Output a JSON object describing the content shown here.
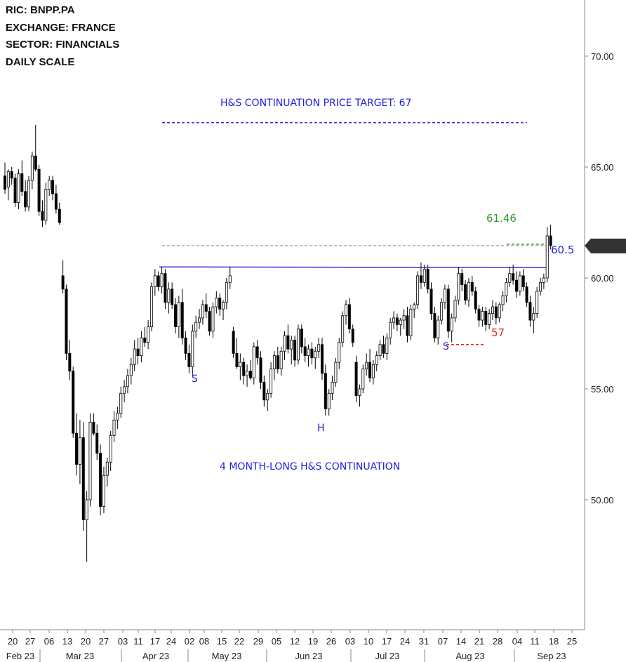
{
  "info": {
    "ric": "RIC:  BNPP.PA",
    "exchange": "EXCHANGE:  FRANCE",
    "sector": "SECTOR:  FINANCIALS",
    "scale": "DAILY SCALE"
  },
  "annotations": {
    "target": "H&S CONTINUATION PRICE TARGET: 67",
    "pattern": "4 MONTH-LONG H&S CONTINUATION",
    "neckline_label": "60.5",
    "last_label": "61.46",
    "stop_label": "57",
    "left_shoulder": "S",
    "head": "H",
    "right_shoulder": "S",
    "last_price_tag": "61.46"
  },
  "colors": {
    "up": "#ffffff",
    "down": "#000000",
    "wick": "#000000",
    "neckline": "#3535e0",
    "target": "#3535e0",
    "last": "#2e9a2e",
    "stop": "#e02020",
    "tag": "#333333"
  },
  "chart_data": {
    "type": "candlestick",
    "ylim": [
      45.0,
      72.0
    ],
    "yticks": [
      70.0,
      65.0,
      60.0,
      55.0,
      50.0
    ],
    "ytick_labels": [
      "70.00",
      "65.00",
      "60.00",
      "55.00",
      "50.00"
    ],
    "x_ticks": [
      "20",
      "27",
      "06",
      "13",
      "20",
      "27",
      "03",
      "11",
      "17",
      "24",
      "02",
      "08",
      "15",
      "22",
      "29",
      "05",
      "12",
      "19",
      "26",
      "03",
      "10",
      "17",
      "24",
      "31",
      "07",
      "14",
      "21",
      "28",
      "04",
      "11",
      "18",
      "25"
    ],
    "months": [
      "Feb 23",
      "Mar 23",
      "Apr 23",
      "May 23",
      "Jun 23",
      "Jul 23",
      "Aug 23",
      "Sep 23"
    ],
    "levels": {
      "target": 67.0,
      "neckline": 60.5,
      "last": 61.46,
      "stop": 57.0
    },
    "candles": [
      [
        64.6,
        65.2,
        63.8,
        64.0
      ],
      [
        64.1,
        64.9,
        63.5,
        64.8
      ],
      [
        64.8,
        65.0,
        64.2,
        64.5
      ],
      [
        64.5,
        64.7,
        63.2,
        63.4
      ],
      [
        63.4,
        64.9,
        63.1,
        64.7
      ],
      [
        64.7,
        65.3,
        63.7,
        63.9
      ],
      [
        63.9,
        64.4,
        63.0,
        63.2
      ],
      [
        63.2,
        64.6,
        63.0,
        64.4
      ],
      [
        64.4,
        65.7,
        64.0,
        65.5
      ],
      [
        65.5,
        66.9,
        64.8,
        64.9
      ],
      [
        64.9,
        65.1,
        62.8,
        63.0
      ],
      [
        63.0,
        63.5,
        62.3,
        62.6
      ],
      [
        62.6,
        64.3,
        62.4,
        64.0
      ],
      [
        64.0,
        64.6,
        63.7,
        64.4
      ],
      [
        64.4,
        64.6,
        63.5,
        63.8
      ],
      [
        63.8,
        64.2,
        62.9,
        63.1
      ],
      [
        63.1,
        63.4,
        62.4,
        62.5
      ],
      [
        60.1,
        60.8,
        59.3,
        59.5
      ],
      [
        59.5,
        59.7,
        56.3,
        56.6
      ],
      [
        56.6,
        57.2,
        55.4,
        55.8
      ],
      [
        55.8,
        56.0,
        52.8,
        53.0
      ],
      [
        53.0,
        53.9,
        51.1,
        51.6
      ],
      [
        51.6,
        53.6,
        50.7,
        52.8
      ],
      [
        52.8,
        53.5,
        48.6,
        49.1
      ],
      [
        49.1,
        50.4,
        47.2,
        50.0
      ],
      [
        50.0,
        53.9,
        49.7,
        53.5
      ],
      [
        53.5,
        53.9,
        52.9,
        53.0
      ],
      [
        53.0,
        53.4,
        51.8,
        52.1
      ],
      [
        52.1,
        52.5,
        49.3,
        49.7
      ],
      [
        49.7,
        51.5,
        49.4,
        51.1
      ],
      [
        51.1,
        51.9,
        50.6,
        51.7
      ],
      [
        51.7,
        53.1,
        51.3,
        52.9
      ],
      [
        52.9,
        54.0,
        52.6,
        53.6
      ],
      [
        53.6,
        54.2,
        53.2,
        53.9
      ],
      [
        53.9,
        55.1,
        53.7,
        54.8
      ],
      [
        54.8,
        55.4,
        54.4,
        55.1
      ],
      [
        55.1,
        55.9,
        54.8,
        55.6
      ],
      [
        55.6,
        56.4,
        55.2,
        56.1
      ],
      [
        56.1,
        57.2,
        55.8,
        56.8
      ],
      [
        56.8,
        57.3,
        56.1,
        56.5
      ],
      [
        56.5,
        57.6,
        56.2,
        57.3
      ],
      [
        57.3,
        57.8,
        56.9,
        57.1
      ],
      [
        57.1,
        58.1,
        56.8,
        57.8
      ],
      [
        57.8,
        59.8,
        57.6,
        59.6
      ],
      [
        59.6,
        60.4,
        59.2,
        60.1
      ],
      [
        60.1,
        60.3,
        59.4,
        59.6
      ],
      [
        59.6,
        60.5,
        59.3,
        60.2
      ],
      [
        60.2,
        60.4,
        58.6,
        58.9
      ],
      [
        58.9,
        59.8,
        58.4,
        59.5
      ],
      [
        59.5,
        59.8,
        58.6,
        58.8
      ],
      [
        58.8,
        59.1,
        57.5,
        57.8
      ],
      [
        57.8,
        59.2,
        57.3,
        58.9
      ],
      [
        58.9,
        59.5,
        57.0,
        57.3
      ],
      [
        57.3,
        57.6,
        56.3,
        56.6
      ],
      [
        56.6,
        57.0,
        55.7,
        56.0
      ],
      [
        56.0,
        57.9,
        55.6,
        57.6
      ],
      [
        57.6,
        58.3,
        57.3,
        58.0
      ],
      [
        58.0,
        58.6,
        57.7,
        58.2
      ],
      [
        58.2,
        59.0,
        57.9,
        58.8
      ],
      [
        58.8,
        59.3,
        58.2,
        58.5
      ],
      [
        58.5,
        58.7,
        57.4,
        57.6
      ],
      [
        57.6,
        58.9,
        57.3,
        58.7
      ],
      [
        58.7,
        59.4,
        58.4,
        59.1
      ],
      [
        59.1,
        59.3,
        58.3,
        58.6
      ],
      [
        58.6,
        59.0,
        58.1,
        58.9
      ],
      [
        58.9,
        60.0,
        58.6,
        59.8
      ],
      [
        59.8,
        60.5,
        59.5,
        60.1
      ],
      [
        57.6,
        57.8,
        56.4,
        56.6
      ],
      [
        56.6,
        57.3,
        55.9,
        56.0
      ],
      [
        56.0,
        56.6,
        55.4,
        56.2
      ],
      [
        56.2,
        56.4,
        55.2,
        55.6
      ],
      [
        55.6,
        56.1,
        55.1,
        55.8
      ],
      [
        55.8,
        56.3,
        55.4,
        55.5
      ],
      [
        55.5,
        57.1,
        55.2,
        56.9
      ],
      [
        56.9,
        57.2,
        56.1,
        56.4
      ],
      [
        56.4,
        56.7,
        55.0,
        55.3
      ],
      [
        55.3,
        55.6,
        54.2,
        54.5
      ],
      [
        54.5,
        55.0,
        54.0,
        54.8
      ],
      [
        54.8,
        56.2,
        54.6,
        55.9
      ],
      [
        55.9,
        56.7,
        55.4,
        56.5
      ],
      [
        56.5,
        56.9,
        55.7,
        55.9
      ],
      [
        55.9,
        56.9,
        55.6,
        56.7
      ],
      [
        56.7,
        57.6,
        56.3,
        57.4
      ],
      [
        57.4,
        57.9,
        56.6,
        56.8
      ],
      [
        56.8,
        57.4,
        56.1,
        57.2
      ],
      [
        57.2,
        57.4,
        56.0,
        56.3
      ],
      [
        56.3,
        57.9,
        56.1,
        57.7
      ],
      [
        57.7,
        57.9,
        56.6,
        56.9
      ],
      [
        56.9,
        57.3,
        56.2,
        56.5
      ],
      [
        56.5,
        57.0,
        56.0,
        56.8
      ],
      [
        56.8,
        57.1,
        56.1,
        56.4
      ],
      [
        56.4,
        56.9,
        55.9,
        56.7
      ],
      [
        56.7,
        57.3,
        56.4,
        57.0
      ],
      [
        57.0,
        57.3,
        55.4,
        55.7
      ],
      [
        55.7,
        56.1,
        53.8,
        54.1
      ],
      [
        54.1,
        55.0,
        53.8,
        54.8
      ],
      [
        54.8,
        55.6,
        54.5,
        55.3
      ],
      [
        55.3,
        56.4,
        55.1,
        56.2
      ],
      [
        56.2,
        57.3,
        55.9,
        57.1
      ],
      [
        57.1,
        58.5,
        56.9,
        58.3
      ],
      [
        58.3,
        59.0,
        57.9,
        58.8
      ],
      [
        58.8,
        59.1,
        57.5,
        57.7
      ],
      [
        57.7,
        57.9,
        56.9,
        57.1
      ],
      [
        56.2,
        56.5,
        54.4,
        54.7
      ],
      [
        54.7,
        55.2,
        54.2,
        55.0
      ],
      [
        55.0,
        56.1,
        54.8,
        55.9
      ],
      [
        55.9,
        56.6,
        55.6,
        56.2
      ],
      [
        56.2,
        56.8,
        55.3,
        55.5
      ],
      [
        55.5,
        56.3,
        55.2,
        56.1
      ],
      [
        56.1,
        56.7,
        55.8,
        56.5
      ],
      [
        56.5,
        57.2,
        56.3,
        57.0
      ],
      [
        57.0,
        57.4,
        56.4,
        56.6
      ],
      [
        56.6,
        57.5,
        56.3,
        57.3
      ],
      [
        57.3,
        58.2,
        57.0,
        58.0
      ],
      [
        58.0,
        58.5,
        57.7,
        58.2
      ],
      [
        58.2,
        58.4,
        57.6,
        57.9
      ],
      [
        57.9,
        58.2,
        57.4,
        58.1
      ],
      [
        58.1,
        58.6,
        57.7,
        58.3
      ],
      [
        58.3,
        58.7,
        57.1,
        57.4
      ],
      [
        57.4,
        58.8,
        57.2,
        58.6
      ],
      [
        58.6,
        58.9,
        58.2,
        58.8
      ],
      [
        58.8,
        60.3,
        58.6,
        60.1
      ],
      [
        60.1,
        60.7,
        59.5,
        59.8
      ],
      [
        59.8,
        60.6,
        59.6,
        60.4
      ],
      [
        60.4,
        60.6,
        59.3,
        59.5
      ],
      [
        59.5,
        59.8,
        58.1,
        58.4
      ],
      [
        58.4,
        58.7,
        57.1,
        57.3
      ],
      [
        57.3,
        58.3,
        57.0,
        58.1
      ],
      [
        58.1,
        59.1,
        57.9,
        58.9
      ],
      [
        58.9,
        59.7,
        58.6,
        59.5
      ],
      [
        59.5,
        59.7,
        57.3,
        57.6
      ],
      [
        57.6,
        58.4,
        57.1,
        58.2
      ],
      [
        58.2,
        59.2,
        58.0,
        59.0
      ],
      [
        59.0,
        60.5,
        58.8,
        60.2
      ],
      [
        60.2,
        60.4,
        59.4,
        59.7
      ],
      [
        59.7,
        59.9,
        58.8,
        59.0
      ],
      [
        59.0,
        60.0,
        58.7,
        59.8
      ],
      [
        59.8,
        60.1,
        59.2,
        59.4
      ],
      [
        59.4,
        59.6,
        58.4,
        58.6
      ],
      [
        58.6,
        58.8,
        57.8,
        58.1
      ],
      [
        58.1,
        58.7,
        57.8,
        58.5
      ],
      [
        58.5,
        58.7,
        57.6,
        57.9
      ],
      [
        57.9,
        58.6,
        57.7,
        58.4
      ],
      [
        58.4,
        59.0,
        58.1,
        58.7
      ],
      [
        58.7,
        58.9,
        57.9,
        58.2
      ],
      [
        58.2,
        58.9,
        58.0,
        58.8
      ],
      [
        58.8,
        59.4,
        58.5,
        59.2
      ],
      [
        59.2,
        60.0,
        58.9,
        59.8
      ],
      [
        59.8,
        60.5,
        59.6,
        60.2
      ],
      [
        60.2,
        60.6,
        59.7,
        59.9
      ],
      [
        59.9,
        60.3,
        59.1,
        59.4
      ],
      [
        59.4,
        60.3,
        59.2,
        60.1
      ],
      [
        60.1,
        60.4,
        59.4,
        59.6
      ],
      [
        59.6,
        59.8,
        58.7,
        58.9
      ],
      [
        58.9,
        59.2,
        57.8,
        58.1
      ],
      [
        58.1,
        58.7,
        57.5,
        58.4
      ],
      [
        58.4,
        59.6,
        58.2,
        59.4
      ],
      [
        59.4,
        60.0,
        59.2,
        59.8
      ],
      [
        59.8,
        60.2,
        59.5,
        60.0
      ],
      [
        60.0,
        62.3,
        59.8,
        61.9
      ],
      [
        61.9,
        62.4,
        61.3,
        61.46
      ]
    ]
  }
}
